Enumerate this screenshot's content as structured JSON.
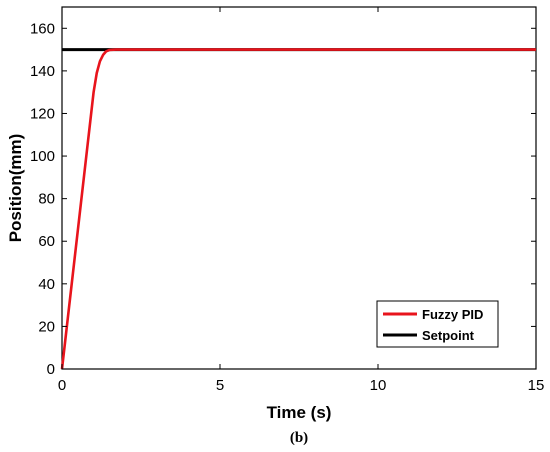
{
  "chart_data": {
    "type": "line",
    "xlabel": "Time (s)",
    "ylabel": "Position(mm)",
    "xlim": [
      0,
      15
    ],
    "ylim": [
      0,
      170
    ],
    "xticks": [
      0,
      5,
      10,
      15
    ],
    "yticks": [
      0,
      20,
      40,
      60,
      80,
      100,
      120,
      140,
      160
    ],
    "grid": false,
    "legend_position": "bottom-right",
    "series": [
      {
        "name": "Fuzzy PID",
        "color": "#e8141c",
        "x": [
          0,
          0.1,
          0.2,
          0.3,
          0.4,
          0.5,
          0.6,
          0.7,
          0.8,
          0.9,
          1.0,
          1.1,
          1.2,
          1.3,
          1.4,
          1.5,
          1.7,
          2.0,
          5,
          10,
          15
        ],
        "y": [
          0,
          13,
          26,
          39,
          52,
          65,
          78,
          91,
          104,
          117,
          130,
          139,
          144.5,
          147.5,
          149.2,
          149.8,
          150,
          150,
          150,
          150,
          150
        ]
      },
      {
        "name": "Setpoint",
        "color": "#000000",
        "x": [
          0,
          15
        ],
        "y": [
          150,
          150
        ]
      }
    ],
    "caption": "(b)"
  }
}
